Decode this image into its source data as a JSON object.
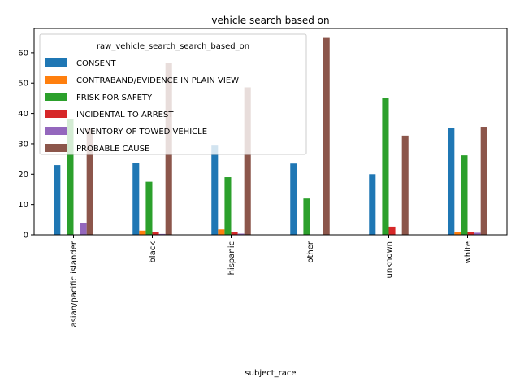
{
  "chart_data": {
    "type": "bar",
    "title": "vehicle search based on",
    "xlabel": "subject_race",
    "ylabel": "",
    "ylim": [
      0,
      68
    ],
    "yticks": [
      0,
      10,
      20,
      30,
      40,
      50,
      60
    ],
    "grid": false,
    "legend": {
      "title": "raw_vehicle_search_search_based_on",
      "placement": "upper-left"
    },
    "categories": [
      "asian/pacific islander",
      "black",
      "hispanic",
      "other",
      "unknown",
      "white"
    ],
    "series": [
      {
        "name": "CONSENT",
        "color": "#1f77b4",
        "values": [
          23.0,
          23.8,
          29.4,
          23.5,
          20.0,
          35.3
        ]
      },
      {
        "name": "CONTRABAND/EVIDENCE IN PLAIN VIEW",
        "color": "#ff7f0e",
        "values": [
          0,
          1.4,
          1.8,
          0,
          0,
          1.0
        ]
      },
      {
        "name": "FRISK FOR SAFETY",
        "color": "#2ca02c",
        "values": [
          38.0,
          17.5,
          19.0,
          12.0,
          45.0,
          26.2
        ]
      },
      {
        "name": "INCIDENTAL TO ARREST",
        "color": "#d62728",
        "values": [
          0,
          0.8,
          0.8,
          0,
          2.7,
          1.0
        ]
      },
      {
        "name": "INVENTORY OF TOWED VEHICLE",
        "color": "#9467bd",
        "values": [
          4.0,
          0.3,
          0.4,
          0,
          0,
          0.7
        ]
      },
      {
        "name": "PROBABLE CAUSE",
        "color": "#8c564b",
        "values": [
          35.0,
          56.6,
          48.6,
          64.9,
          32.7,
          35.6
        ]
      }
    ]
  }
}
